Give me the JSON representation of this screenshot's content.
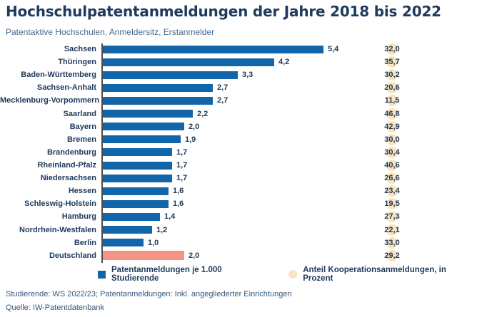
{
  "title": "Hochschulpatentanmeldungen der Jahre 2018 bis 2022",
  "subtitle": "Patentaktive Hochschulen, Anmeldersitz, Erstanmelder",
  "chart_data": {
    "type": "bar",
    "orientation": "horizontal",
    "title": "Hochschulpatentanmeldungen der Jahre 2018 bis 2022",
    "subtitle": "Patentaktive Hochschulen, Anmeldersitz, Erstanmelder",
    "categories": [
      "Sachsen",
      "Thüringen",
      "Baden-Württemberg",
      "Sachsen-Anhalt",
      "Mecklenburg-Vorpommern",
      "Saarland",
      "Bayern",
      "Bremen",
      "Brandenburg",
      "Rheinland-Pfalz",
      "Niedersachsen",
      "Hessen",
      "Schleswig-Holstein",
      "Hamburg",
      "Nordrhein-Westfalen",
      "Berlin",
      "Deutschland"
    ],
    "series": [
      {
        "name": "Patentanmeldungen je 1.000 Studierende",
        "values": [
          5.4,
          4.2,
          3.3,
          2.7,
          2.7,
          2.2,
          2.0,
          1.9,
          1.7,
          1.7,
          1.7,
          1.6,
          1.6,
          1.4,
          1.2,
          1.0,
          2.0
        ],
        "labels": [
          "5,4",
          "4,2",
          "3,3",
          "2,7",
          "2,7",
          "2,2",
          "2,0",
          "1,9",
          "1,7",
          "1,7",
          "1,7",
          "1,6",
          "1,6",
          "1,4",
          "1,2",
          "1,0",
          "2,0"
        ]
      },
      {
        "name": "Anteil Kooperationsanmeldungen, in Prozent",
        "values": [
          32.0,
          35.7,
          30.2,
          20.6,
          11.5,
          46.8,
          42.9,
          30.0,
          30.4,
          40.6,
          26.6,
          23.4,
          19.5,
          27.3,
          22.1,
          33.0,
          29.2
        ],
        "labels": [
          "32,0",
          "35,7",
          "30,2",
          "20,6",
          "11,5",
          "46,8",
          "42,9",
          "30,0",
          "30,4",
          "40,6",
          "26,6",
          "23,4",
          "19,5",
          "27,3",
          "22,1",
          "33,0",
          "29,2"
        ]
      }
    ],
    "highlight_category": "Deutschland",
    "xlim": [
      0,
      5.8
    ],
    "grid": false,
    "legend_position": "bottom",
    "colors": {
      "bar": "#1265A8",
      "highlight_bar": "#F39485",
      "cooperation_badge": "#FBE3BC",
      "text_navy": "#1E3A5C",
      "axis_line": "#4D4D4D"
    }
  },
  "legend": [
    {
      "label": "Patentanmeldungen je 1.000 Studierende",
      "swatch": "blue-square"
    },
    {
      "label": "Anteil Kooperationsanmeldungen, in Prozent",
      "swatch": "cream-circle"
    }
  ],
  "footnote": "Studierende: WS 2022/23; Patentanmeldungen: Inkl. angegliederter Einrichtungen",
  "source": "Quelle: IW-Patentdatenbank"
}
